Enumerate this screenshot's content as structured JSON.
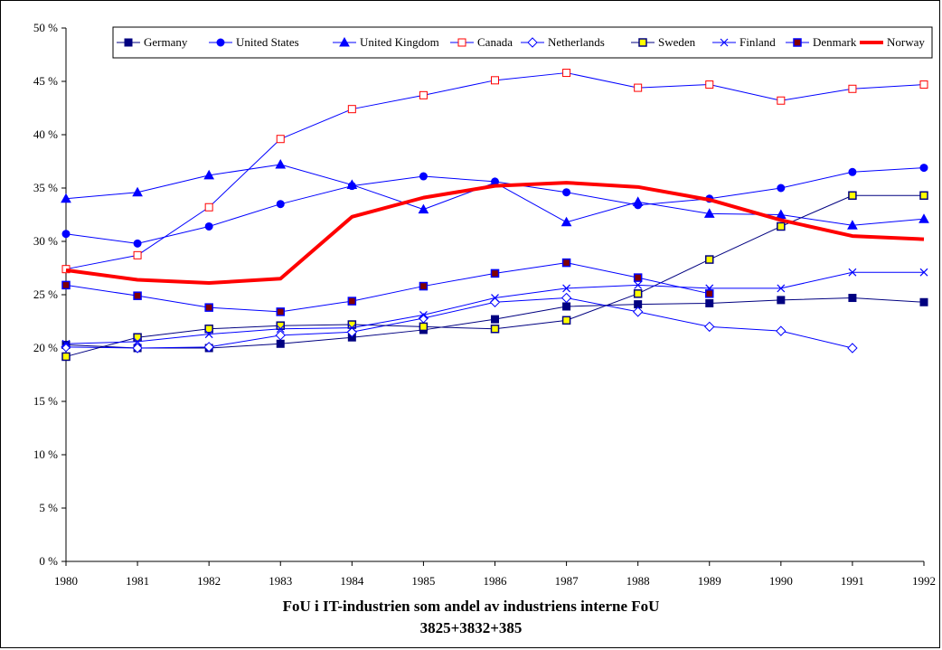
{
  "chart_data": {
    "type": "line",
    "title": "FoU i IT-industrien som andel av industriens interne FoU",
    "subtitle": "3825+3832+385",
    "x": [
      "1980",
      "1981",
      "1982",
      "1983",
      "1984",
      "1985",
      "1986",
      "1987",
      "1988",
      "1989",
      "1990",
      "1991",
      "1992"
    ],
    "ylim": [
      0,
      50
    ],
    "yticks": [
      "0 %",
      "5 %",
      "10 %",
      "15 %",
      "20 %",
      "25 %",
      "30 %",
      "35 %",
      "40 %",
      "45 %",
      "50 %"
    ],
    "legend_position": "top",
    "grid": false,
    "series": [
      {
        "name": "Germany",
        "color": "#000080",
        "marker": "square-filled",
        "values": [
          20.3,
          20.0,
          20.0,
          20.4,
          21.0,
          21.7,
          22.7,
          23.9,
          24.1,
          24.2,
          24.5,
          24.7,
          24.3
        ]
      },
      {
        "name": "United States",
        "color": "#0000ff",
        "marker": "circle",
        "values": [
          30.7,
          29.8,
          31.4,
          33.5,
          35.2,
          36.1,
          35.6,
          34.6,
          33.4,
          34.0,
          35.0,
          36.5,
          36.9
        ]
      },
      {
        "name": "United Kingdom",
        "color": "#0000ff",
        "marker": "triangle",
        "values": [
          34.0,
          34.6,
          36.2,
          37.2,
          35.3,
          33.0,
          35.5,
          31.8,
          33.7,
          32.6,
          32.5,
          31.5,
          32.1
        ]
      },
      {
        "name": "Canada",
        "color": "#ff0000",
        "marker": "square-open",
        "line": "#0000ff",
        "values": [
          27.4,
          28.7,
          33.2,
          39.6,
          42.4,
          43.7,
          45.1,
          45.8,
          44.4,
          44.7,
          43.2,
          44.3,
          44.7
        ]
      },
      {
        "name": "Netherlands",
        "color": "#0000ff",
        "marker": "diamond-open",
        "values": [
          20.1,
          20.0,
          20.1,
          21.2,
          21.5,
          22.8,
          24.3,
          24.7,
          23.4,
          22.0,
          21.6,
          20.0,
          null
        ]
      },
      {
        "name": "Sweden",
        "color": "#000080",
        "marker": "square-yellow",
        "values": [
          19.2,
          21.0,
          21.8,
          22.1,
          22.2,
          22.0,
          21.8,
          22.6,
          25.1,
          28.3,
          31.4,
          34.3,
          34.3
        ]
      },
      {
        "name": "Finland",
        "color": "#0000ff",
        "marker": "x",
        "values": [
          20.4,
          20.6,
          21.3,
          21.8,
          21.9,
          23.1,
          24.7,
          25.6,
          25.9,
          25.6,
          25.6,
          27.1,
          27.1
        ]
      },
      {
        "name": "Denmark",
        "color": "#0000ff",
        "marker": "square-red",
        "values": [
          25.9,
          24.9,
          23.8,
          23.4,
          24.4,
          25.8,
          27.0,
          28.0,
          26.6,
          25.1,
          null,
          null,
          null
        ]
      },
      {
        "name": "Norway",
        "color": "#ff0000",
        "marker": "none",
        "thick": true,
        "values": [
          27.3,
          26.4,
          26.1,
          26.5,
          32.3,
          34.1,
          35.2,
          35.5,
          35.1,
          33.9,
          32.0,
          30.5,
          30.2
        ]
      }
    ]
  }
}
